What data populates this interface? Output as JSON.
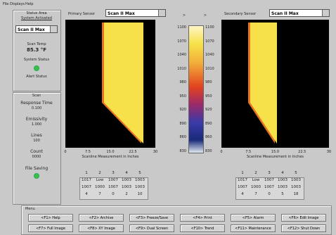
{
  "menu_bar": [
    "File",
    "Displays",
    "Help"
  ],
  "status_area": {
    "title": "Status Area",
    "subtitle": "System Activated",
    "sensor": "Scan II Max",
    "scan_temp_label": "Scan Temp",
    "scan_temp": "85.3 °F",
    "system_status": "System Status",
    "alert_status": "Alert Status"
  },
  "scan_area": {
    "title": "Scan",
    "items": [
      [
        "Response Time",
        "0.100"
      ],
      [
        "Emissivity",
        "1.000"
      ],
      [
        "Lines",
        "100"
      ],
      [
        "Count",
        "0000"
      ]
    ],
    "file_saving": "File Saving"
  },
  "primary": {
    "label": "Primary Sensor",
    "sensor": "Scan II Max",
    "axis_ticks": [
      "0",
      "7.5",
      "15.0",
      "22.5",
      "30"
    ],
    "axis_title": "Scanline Measurement in Inches",
    "table": [
      [
        "1",
        "2",
        "3",
        "4",
        "5"
      ],
      [
        "1017",
        "Low",
        "1007",
        "1003",
        "1003"
      ],
      [
        "1007",
        "1000",
        "1007",
        "1003",
        "1003"
      ],
      [
        "4",
        "7",
        "0",
        "2",
        "10"
      ]
    ]
  },
  "secondary": {
    "label": "Secondary Sensor",
    "sensor": "Scan II Max",
    "axis_ticks": [
      "0",
      "7.5",
      "15.0",
      "22.5",
      "30"
    ],
    "axis_title": "Scanline Measurement in Inches",
    "table": [
      [
        "1",
        "2",
        "3",
        "4",
        "5"
      ],
      [
        "1017",
        "Low",
        "1007",
        "1003",
        "1003"
      ],
      [
        "1007",
        "1000",
        "1007",
        "1003",
        "1003"
      ],
      [
        "4",
        "7",
        "0",
        "5",
        "18"
      ]
    ]
  },
  "scale_arrows": [
    ">",
    ">"
  ],
  "color_scale": [
    "1100",
    "1070",
    "1040",
    "1010",
    "980",
    "950",
    "920",
    "890",
    "860",
    "830"
  ],
  "menu": {
    "title": "Menu",
    "buttons": [
      [
        "<F1> Help",
        "<F2> Archive",
        "<F3> Freeze/Save",
        "<F4> Print",
        "<F5> Alarm",
        "<F6> Edit Image"
      ],
      [
        "<F7> Full Image",
        "<F8> XY Image",
        "<F9> Dual Screen",
        "<F10> Trend",
        "<F11> Maintenance",
        "<F12> Shut Down"
      ]
    ]
  }
}
